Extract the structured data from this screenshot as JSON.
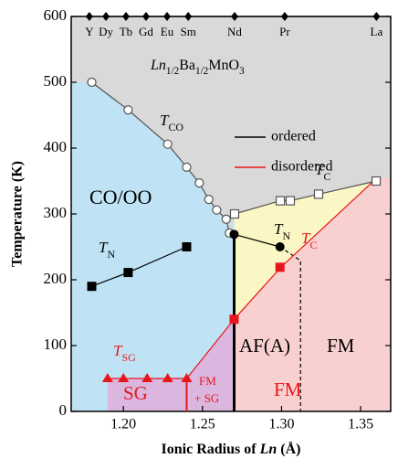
{
  "chart_data": {
    "type": "line",
    "title": [
      {
        "text": "Ln",
        "style": "italic"
      },
      {
        "text": "1/2",
        "style": "sub"
      },
      {
        "text": "Ba"
      },
      {
        "text": "1/2",
        "style": "sub"
      },
      {
        "text": "MnO"
      },
      {
        "text": "3",
        "style": "sub"
      }
    ],
    "xlabel": [
      {
        "text": "Ionic Radius of "
      },
      {
        "text": "Ln",
        "style": "italic"
      },
      {
        "text": " (Å)"
      }
    ],
    "ylabel": "Temperature (K)",
    "xlim": [
      1.167,
      1.369
    ],
    "ylim": [
      0,
      600
    ],
    "xticks": [
      {
        "value": 1.2,
        "label": "1.20"
      },
      {
        "value": 1.25,
        "label": "1.25"
      },
      {
        "value": 1.3,
        "label": "1.30"
      },
      {
        "value": 1.35,
        "label": "1.35"
      }
    ],
    "yticks": [
      0,
      100,
      200,
      300,
      400,
      500,
      600
    ],
    "elements": {
      "names": [
        "Y",
        "Dy",
        "Tb",
        "Gd",
        "Eu",
        "Sm",
        "Nd",
        "Pr",
        "La"
      ],
      "x": [
        1.1785,
        1.189,
        1.2016,
        1.2143,
        1.2276,
        1.241,
        1.2703,
        1.302,
        1.36
      ],
      "y": 600,
      "color": "#000000"
    },
    "series": [
      {
        "x": [
          1.18,
          1.203,
          1.228,
          1.24,
          1.248,
          1.254,
          1.259,
          1.265,
          1.267
        ],
        "values": [
          500,
          458,
          406,
          371,
          347,
          322,
          306,
          292,
          271
        ],
        "color": "#555555",
        "marker": "circle-open"
      },
      {
        "x": [
          1.2703,
          1.2992,
          1.3055,
          1.3234,
          1.3598
        ],
        "values": [
          300,
          320,
          320,
          330,
          350
        ],
        "color": "#555555",
        "marker": "square-open"
      },
      {
        "x": [
          1.18,
          1.203,
          1.24
        ],
        "values": [
          190,
          211,
          250
        ],
        "color": "#000000",
        "marker": "square"
      },
      {
        "x": [
          1.27,
          1.299
        ],
        "values": [
          269,
          250
        ],
        "color": "#000000",
        "marker": "circle"
      },
      {
        "x": [
          1.299,
          1.312,
          1.312
        ],
        "values": [
          250,
          229,
          0
        ],
        "color": "#000000",
        "marker": "none",
        "dash": true
      },
      {
        "x": [
          1.24,
          1.27,
          1.3,
          1.36
        ],
        "values": [
          50,
          140,
          220,
          354
        ],
        "color": "#e8161b",
        "marker": "none"
      },
      {
        "x": [
          1.27,
          1.299
        ],
        "values": [
          140,
          219
        ],
        "color": "#e8161b",
        "marker": "square",
        "line": false
      },
      {
        "x": [
          1.19,
          1.2,
          1.215,
          1.228,
          1.24
        ],
        "values": [
          50,
          50,
          50,
          50,
          50
        ],
        "color": "#e8161b",
        "marker": "triangle"
      },
      {
        "x": [
          1.27,
          1.27
        ],
        "values": [
          0,
          269
        ],
        "color": "#000000",
        "marker": "none",
        "width": 3
      },
      {
        "x": [
          1.24,
          1.24
        ],
        "values": [
          0,
          50
        ],
        "color": "#e8161b",
        "marker": "none",
        "width": 2
      }
    ],
    "region_colors": {
      "upper": "#d9d9d9",
      "co_oo": "#bfe3f4",
      "af": "#fbf7c4",
      "fm": "#f9d0d0",
      "sg": "#dbb6df"
    },
    "legend": {
      "position": "upper right",
      "entries": [
        {
          "label": "ordered",
          "color": "#000000"
        },
        {
          "label": "disordered",
          "color": "#e8161b"
        }
      ]
    },
    "annotations": [
      {
        "parts": [
          {
            "text": "T",
            "style": "italic"
          },
          {
            "text": "CO",
            "style": "sub"
          }
        ],
        "color": "#000000"
      },
      {
        "parts": [
          {
            "text": "T",
            "style": "italic"
          },
          {
            "text": "C",
            "style": "sub"
          }
        ],
        "color": "#000000"
      },
      {
        "parts": [
          {
            "text": "CO/OO"
          }
        ],
        "color": "#000000"
      },
      {
        "parts": [
          {
            "text": "T",
            "style": "italic"
          },
          {
            "text": "N",
            "style": "sub"
          }
        ],
        "color": "#000000"
      },
      {
        "parts": [
          {
            "text": "T",
            "style": "italic"
          },
          {
            "text": "N",
            "style": "sub"
          }
        ],
        "color": "#000000"
      },
      {
        "parts": [
          {
            "text": "T",
            "style": "italic"
          },
          {
            "text": "C",
            "style": "sub"
          }
        ],
        "color": "#e8161b"
      },
      {
        "parts": [
          {
            "text": "T",
            "style": "italic"
          },
          {
            "text": "SG",
            "style": "sub"
          }
        ],
        "color": "#e8161b"
      },
      {
        "parts": [
          {
            "text": "AF(A)"
          }
        ],
        "color": "#000000"
      },
      {
        "parts": [
          {
            "text": "FM"
          }
        ],
        "color": "#000000"
      },
      {
        "parts": [
          {
            "text": "FM"
          }
        ],
        "color": "#e8161b"
      },
      {
        "parts": [
          {
            "text": "SG"
          }
        ],
        "color": "#e8161b"
      },
      {
        "parts": [
          {
            "text": "FM"
          }
        ],
        "color": "#e8161b"
      },
      {
        "parts": [
          {
            "text": "+ SG"
          }
        ],
        "color": "#e8161b"
      }
    ]
  }
}
